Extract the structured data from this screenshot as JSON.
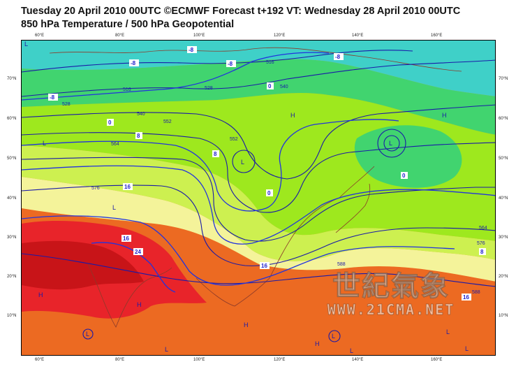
{
  "header": {
    "line1": "Tuesday 20 April 2010 00UTC ©ECMWF Forecast t+192 VT: Wednesday 28 April 2010 00UTC",
    "line2": "850 hPa Temperature / 500 hPa Geopotential"
  },
  "axes": {
    "top_ticks": [
      "60°E",
      "80°E",
      "100°E",
      "120°E",
      "140°E",
      "160°E"
    ],
    "bottom_ticks": [
      "60°E",
      "80°E",
      "100°E",
      "120°E",
      "140°E",
      "160°E"
    ],
    "left_ticks": [
      "70°N",
      "60°N",
      "50°N",
      "40°N",
      "30°N",
      "20°N",
      "10°N"
    ],
    "right_ticks": [
      "70°N",
      "60°N",
      "50°N",
      "40°N",
      "30°N",
      "20°N",
      "10°N"
    ]
  },
  "geopotential_labels": [
    "516",
    "528",
    "540",
    "552",
    "564",
    "576",
    "588",
    "516",
    "528",
    "540",
    "552",
    "564",
    "576",
    "588"
  ],
  "temperature_labels": [
    "-8",
    "-8",
    "-8",
    "-8",
    "-8",
    "0",
    "0",
    "0",
    "0",
    "8",
    "8",
    "8",
    "16",
    "16",
    "16",
    "24",
    "16"
  ],
  "pressure_centers": [
    "L",
    "H",
    "L",
    "L",
    "L",
    "H",
    "L",
    "H",
    "H",
    "L",
    "L",
    "H",
    "L",
    "H",
    "L",
    "L",
    "L"
  ],
  "watermark": {
    "title": "世紀氣象",
    "url": "WWW.21CMA.NET"
  },
  "colors": {
    "cold_cyan": "#3fd0c8",
    "cool_green": "#41d46f",
    "lime": "#9ee81e",
    "yellow_green": "#cdf050",
    "pale_yellow": "#f4f39a",
    "orange": "#f39a33",
    "dark_orange": "#ec6a22",
    "red": "#e8242a",
    "dark_red": "#c81418",
    "contour": "#1a1aa8",
    "coast": "#8b3a2a"
  }
}
